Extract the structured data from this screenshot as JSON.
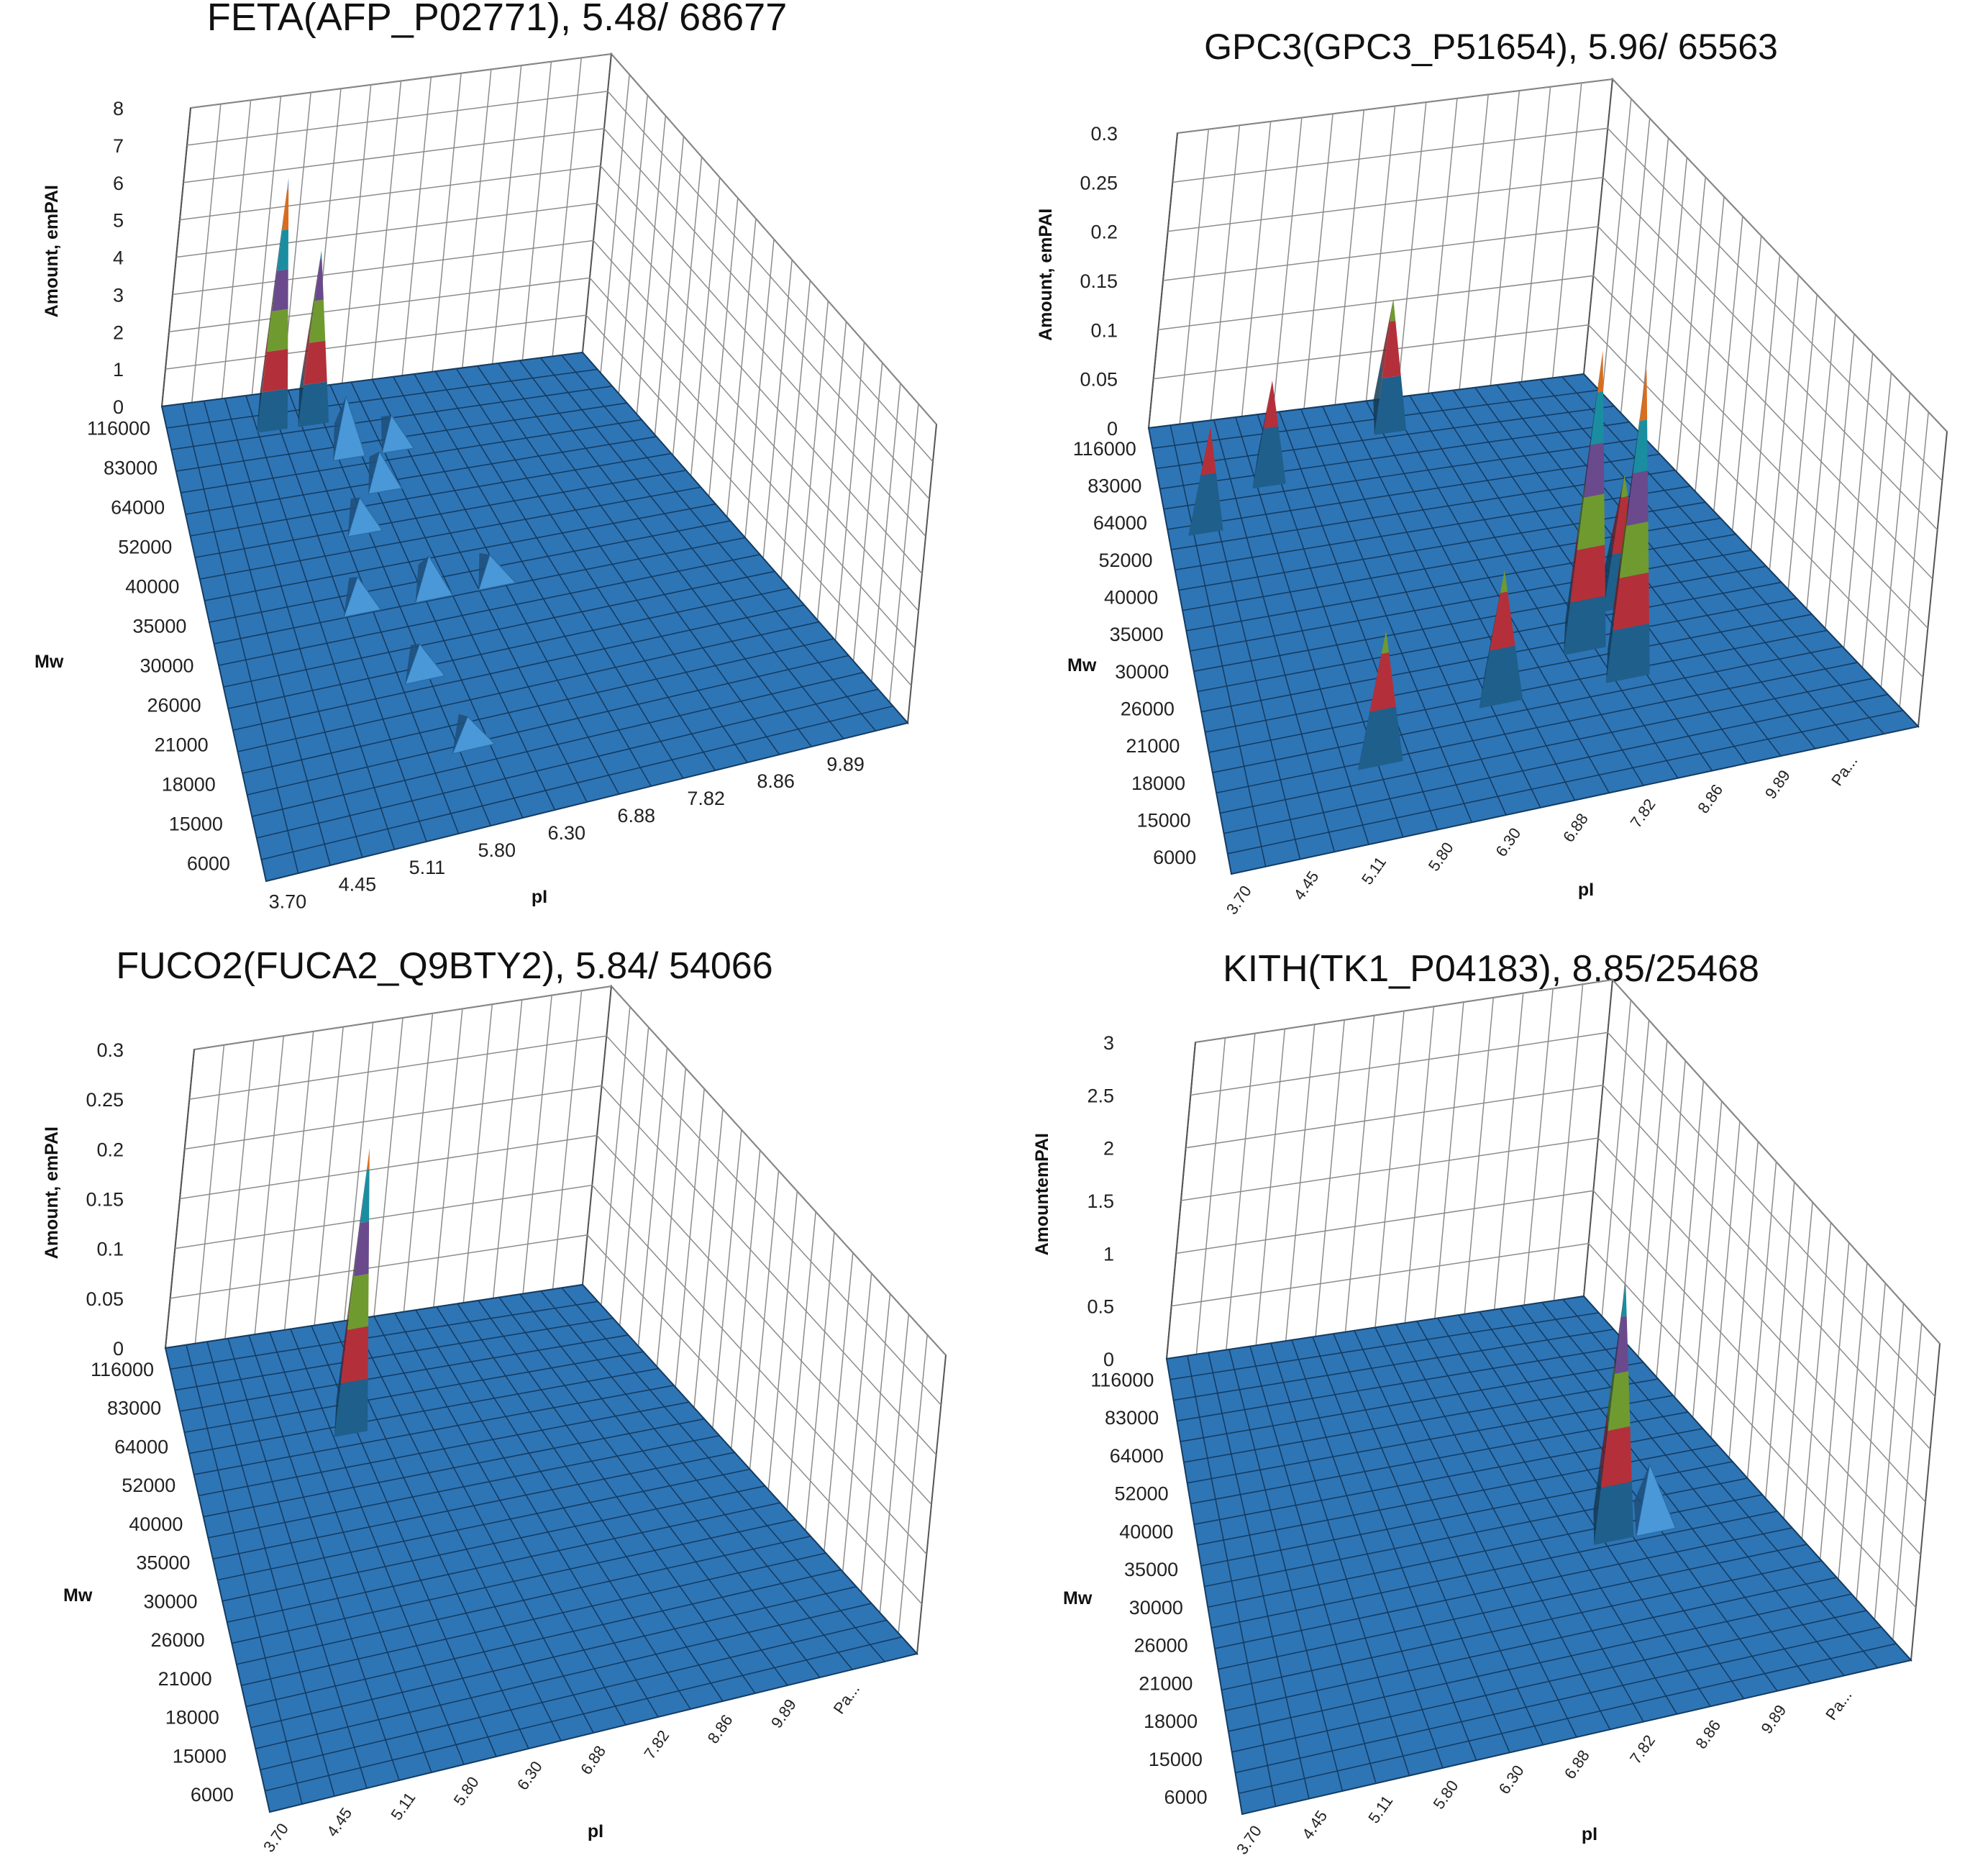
{
  "chart_data": [
    {
      "type": "surface3d",
      "title": "FETA(AFP_P02771), 5.48/ 68677",
      "zlabel": "Amount, emPAI",
      "ylabel": "Mw",
      "xlabel": "pI",
      "zticks": [
        "0",
        "1",
        "2",
        "3",
        "4",
        "5",
        "6",
        "7",
        "8"
      ],
      "zlim": [
        0,
        8
      ],
      "mw_ticks": [
        "116000",
        "83000",
        "64000",
        "52000",
        "40000",
        "35000",
        "30000",
        "26000",
        "21000",
        "18000",
        "15000",
        "6000"
      ],
      "pi_ticks": [
        "3.70",
        "4.45",
        "5.11",
        "5.80",
        "6.30",
        "6.88",
        "7.82",
        "8.86",
        "9.89"
      ],
      "peaks": [
        {
          "pi": 4.9,
          "mw": 116000,
          "height": 6.3
        },
        {
          "pi": 5.5,
          "mw": 116000,
          "height": 4.2
        },
        {
          "pi": 5.8,
          "mw": 83000,
          "height": 1.2
        },
        {
          "pi": 6.3,
          "mw": 83000,
          "height": 0.5
        },
        {
          "pi": 6.0,
          "mw": 64000,
          "height": 0.6
        },
        {
          "pi": 5.6,
          "mw": 52000,
          "height": 0.5
        },
        {
          "pi": 6.0,
          "mw": 35000,
          "height": 0.7
        },
        {
          "pi": 5.2,
          "mw": 35000,
          "height": 0.5
        },
        {
          "pi": 6.6,
          "mw": 35000,
          "height": 0.4
        },
        {
          "pi": 5.6,
          "mw": 26000,
          "height": 0.5
        },
        {
          "pi": 5.8,
          "mw": 18000,
          "height": 0.4
        }
      ]
    },
    {
      "type": "surface3d",
      "title": "GPC3(GPC3_P51654), 5.96/ 65563",
      "zlabel": "Amount, emPAI",
      "ylabel": "Mw",
      "xlabel": "pI",
      "zticks": [
        "0",
        "0.05",
        "0.1",
        "0.15",
        "0.2",
        "0.25",
        "0.3"
      ],
      "zlim": [
        0,
        0.3
      ],
      "mw_ticks": [
        "116000",
        "83000",
        "64000",
        "52000",
        "40000",
        "35000",
        "30000",
        "26000",
        "21000",
        "18000",
        "15000",
        "6000"
      ],
      "pi_ticks": [
        "3.70",
        "4.45",
        "5.11",
        "5.80",
        "6.30",
        "6.88",
        "7.82",
        "8.86",
        "9.89",
        "Pa..."
      ],
      "peaks": [
        {
          "pi": 3.9,
          "mw": 64000,
          "height": 0.09
        },
        {
          "pi": 5.0,
          "mw": 83000,
          "height": 0.09
        },
        {
          "pi": 6.8,
          "mw": 116000,
          "height": 0.12
        },
        {
          "pi": 5.2,
          "mw": 18000,
          "height": 0.12
        },
        {
          "pi": 6.5,
          "mw": 21000,
          "height": 0.12
        },
        {
          "pi": 7.9,
          "mw": 26000,
          "height": 0.29
        },
        {
          "pi": 8.3,
          "mw": 21000,
          "height": 0.3
        },
        {
          "pi": 9.0,
          "mw": 30000,
          "height": 0.12
        }
      ]
    },
    {
      "type": "surface3d",
      "title": "FUCO2(FUCA2_Q9BTY2), 5.84/ 54066",
      "zlabel": "Amount, emPAI",
      "ylabel": "Mw",
      "xlabel": "pI",
      "zticks": [
        "0",
        "0.05",
        "0.1",
        "0.15",
        "0.2",
        "0.25",
        "0.3"
      ],
      "zlim": [
        0,
        0.3
      ],
      "mw_ticks": [
        "116000",
        "83000",
        "64000",
        "52000",
        "40000",
        "35000",
        "30000",
        "26000",
        "21000",
        "18000",
        "15000",
        "6000"
      ],
      "pi_ticks": [
        "3.70",
        "4.45",
        "5.11",
        "5.80",
        "6.30",
        "6.88",
        "7.82",
        "8.86",
        "9.89",
        "Pa..."
      ],
      "peaks": [
        {
          "pi": 5.8,
          "mw": 64000,
          "height": 0.27
        }
      ]
    },
    {
      "type": "surface3d",
      "title": "KITH(TK1_P04183), 8.85/25468",
      "zlabel": "AmountemPAI",
      "ylabel": "Mw",
      "xlabel": "pI",
      "zticks": [
        "0",
        "0.5",
        "1",
        "1.5",
        "2",
        "2.5",
        "3"
      ],
      "zlim": [
        0,
        3
      ],
      "mw_ticks": [
        "116000",
        "83000",
        "64000",
        "52000",
        "40000",
        "35000",
        "30000",
        "26000",
        "21000",
        "18000",
        "15000",
        "6000"
      ],
      "pi_ticks": [
        "3.70",
        "4.45",
        "5.11",
        "5.80",
        "6.30",
        "6.88",
        "7.82",
        "8.86",
        "9.89",
        "Pa..."
      ],
      "peaks": [
        {
          "pi": 8.8,
          "mw": 30000,
          "height": 2.3
        },
        {
          "pi": 9.6,
          "mw": 30000,
          "height": 0.5
        }
      ]
    }
  ],
  "colors": {
    "floor": "#2e75b6",
    "floor_grid": "#153d62",
    "wall_grid": "#8c8c8c",
    "bands": [
      "#1f5f8b",
      "#b3303a",
      "#6f9a2f",
      "#6a4a8c",
      "#1a8ea0",
      "#d86d1e",
      "#7f98c0"
    ],
    "minor_peak": "#4a98d8"
  }
}
